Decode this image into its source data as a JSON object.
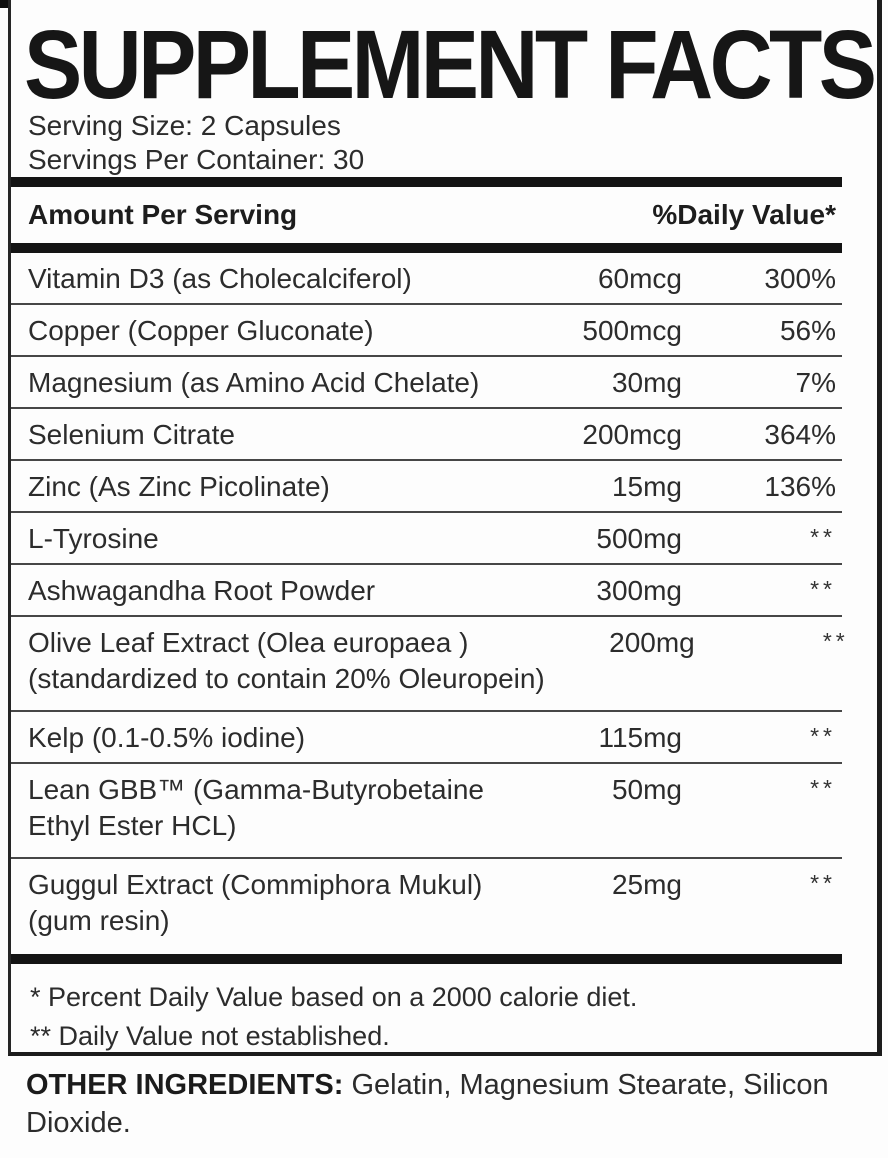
{
  "panel": {
    "title": "SUPPLEMENT FACTS",
    "serving_size": "Serving Size: 2 Capsules",
    "servings_per_container": "Servings Per Container: 30",
    "header": {
      "amount_col": "Amount Per Serving",
      "dv_col": "%Daily Value*"
    },
    "rows": [
      {
        "name": "Vitamin D3 (as Cholecalciferol)",
        "amount": "60mcg",
        "dv": "300%"
      },
      {
        "name": "Copper (Copper Gluconate)",
        "amount": "500mcg",
        "dv": "56%"
      },
      {
        "name": "Magnesium (as Amino Acid Chelate)",
        "amount": "30mg",
        "dv": "7%"
      },
      {
        "name": "Selenium Citrate",
        "amount": "200mcg",
        "dv": "364%"
      },
      {
        "name": "Zinc (As Zinc Picolinate)",
        "amount": "15mg",
        "dv": "136%"
      },
      {
        "name": "L-Tyrosine",
        "amount": "500mg",
        "dv": "**"
      },
      {
        "name": "Ashwagandha Root Powder",
        "amount": "300mg",
        "dv": "**"
      },
      {
        "name": "Olive Leaf Extract (Olea europaea )",
        "name_line2": "(standardized to contain 20% Oleuropein)",
        "amount": "200mg",
        "dv": "**"
      },
      {
        "name": "Kelp (0.1-0.5% iodine)",
        "amount": "115mg",
        "dv": "**"
      },
      {
        "name": "Lean GBB™ (Gamma-Butyrobetaine",
        "name_line2": "Ethyl Ester HCL)",
        "amount": "50mg",
        "dv": "**"
      },
      {
        "name": "Guggul Extract (Commiphora Mukul)",
        "name_line2": "(gum resin)",
        "amount": "25mg",
        "dv": "**"
      }
    ],
    "footnotes": {
      "dv_note": "* Percent Daily Value based on a 2000 calorie diet.",
      "not_established_note": "** Daily Value not established."
    }
  },
  "other_ingredients": {
    "label": "OTHER INGREDIENTS:",
    "text": " Gelatin, Magnesium Stearate, Silicon Dioxide."
  },
  "colors": {
    "text": "#2c2c2c",
    "heavy_rule": "#141414",
    "border": "#1c1c1c",
    "background": "#fdfdfd"
  }
}
